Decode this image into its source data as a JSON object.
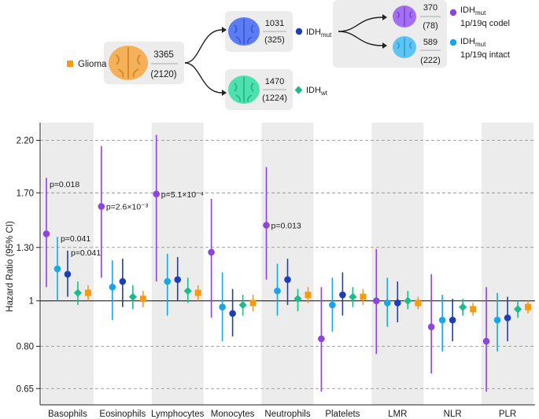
{
  "tree": {
    "root": {
      "label": "Glioma",
      "count": "3365",
      "sub": "(2120)",
      "color": "#f39c12"
    },
    "idh_mut": {
      "label": "IDH",
      "sub_label": "mut",
      "count": "1031",
      "sub": "(325)",
      "color": "#1c3fb8"
    },
    "idh_wt": {
      "label": "IDH",
      "sub_label": "wt",
      "count": "1470",
      "sub": "(1224)",
      "color": "#1abc8c"
    },
    "codel": {
      "label": "IDH",
      "sub_label": "mut",
      "desc": "1p/19q codel",
      "count": "370",
      "sub": "(78)",
      "color": "#8e44e0"
    },
    "intact": {
      "label": "IDH",
      "sub_label": "mut",
      "desc": "1p/19q intact",
      "count": "589",
      "sub": "(222)",
      "color": "#1aa6e6"
    }
  },
  "chart_data": {
    "type": "forest",
    "ylabel": "Hazard Ratio (95% CI)",
    "yscale": "log",
    "ylim": [
      0.6,
      2.4
    ],
    "yticks": [
      "2.20",
      "1.70",
      "1.30",
      "1",
      "0.80",
      "0.65"
    ],
    "ytick_values": [
      2.2,
      1.7,
      1.3,
      1.0,
      0.8,
      0.65
    ],
    "categories": [
      "Basophils",
      "Eosinophils",
      "Lymphocytes",
      "Monocytes",
      "Neutrophils",
      "Platelets",
      "LMR",
      "NLR",
      "PLR"
    ],
    "series": [
      {
        "name": "IDHmut 1p/19q codel",
        "color": "#8e44e0",
        "marker": "circle",
        "hr": [
          1.39,
          1.59,
          1.69,
          1.27,
          1.45,
          0.83,
          1.0,
          0.88,
          0.82
        ],
        "lo": [
          1.07,
          1.12,
          1.1,
          0.92,
          1.11,
          0.64,
          0.77,
          0.7,
          0.64
        ],
        "hi": [
          1.83,
          2.14,
          2.26,
          1.65,
          1.93,
          1.07,
          1.29,
          1.14,
          1.07
        ]
      },
      {
        "name": "IDHmut 1p/19q intact",
        "color": "#1aa6e6",
        "marker": "circle",
        "hr": [
          1.17,
          1.07,
          1.1,
          0.97,
          1.05,
          0.98,
          0.99,
          0.91,
          0.91
        ],
        "lo": [
          1.0,
          0.91,
          0.93,
          0.82,
          0.93,
          0.86,
          0.88,
          0.78,
          0.78
        ],
        "hi": [
          1.37,
          1.22,
          1.26,
          1.15,
          1.2,
          1.12,
          1.12,
          1.03,
          1.04
        ]
      },
      {
        "name": "IDHmut",
        "color": "#1c3fb8",
        "marker": "circle",
        "hr": [
          1.14,
          1.1,
          1.11,
          0.94,
          1.11,
          1.03,
          0.99,
          0.91,
          0.92
        ],
        "lo": [
          1.02,
          0.97,
          1.0,
          0.84,
          0.98,
          0.93,
          0.9,
          0.82,
          0.82
        ],
        "hi": [
          1.28,
          1.23,
          1.24,
          1.06,
          1.23,
          1.15,
          1.1,
          1.01,
          1.02
        ]
      },
      {
        "name": "IDHwt",
        "color": "#1abc8c",
        "marker": "diamond",
        "hr": [
          1.04,
          1.02,
          1.05,
          0.98,
          1.01,
          1.02,
          1.0,
          0.97,
          0.96
        ],
        "lo": [
          0.98,
          0.96,
          0.99,
          0.93,
          0.95,
          0.97,
          0.96,
          0.93,
          0.92
        ],
        "hi": [
          1.1,
          1.08,
          1.12,
          1.03,
          1.06,
          1.07,
          1.05,
          1.01,
          1.0
        ]
      },
      {
        "name": "Glioma",
        "color": "#f39c12",
        "marker": "square",
        "hr": [
          1.04,
          1.01,
          1.04,
          0.99,
          1.03,
          1.02,
          0.99,
          0.96,
          0.97
        ],
        "lo": [
          1.0,
          0.97,
          1.0,
          0.95,
          0.99,
          0.98,
          0.96,
          0.93,
          0.94
        ],
        "hi": [
          1.08,
          1.05,
          1.08,
          1.03,
          1.07,
          1.06,
          1.02,
          0.99,
          1.0
        ]
      }
    ],
    "annotations": [
      {
        "cat": 0,
        "series": 0,
        "text": "p=0.018"
      },
      {
        "cat": 0,
        "series": 1,
        "text": "p=0.041"
      },
      {
        "cat": 0,
        "series": 2,
        "text": "p=0.041"
      },
      {
        "cat": 1,
        "series": 0,
        "text": "p=2.6×10⁻³"
      },
      {
        "cat": 2,
        "series": 0,
        "text": "p=5.1×10⁻⁴"
      },
      {
        "cat": 4,
        "series": 0,
        "text": "p=0.013"
      }
    ],
    "shaded_categories": [
      0,
      2,
      4,
      6,
      8
    ],
    "reference_line": 1.0
  }
}
